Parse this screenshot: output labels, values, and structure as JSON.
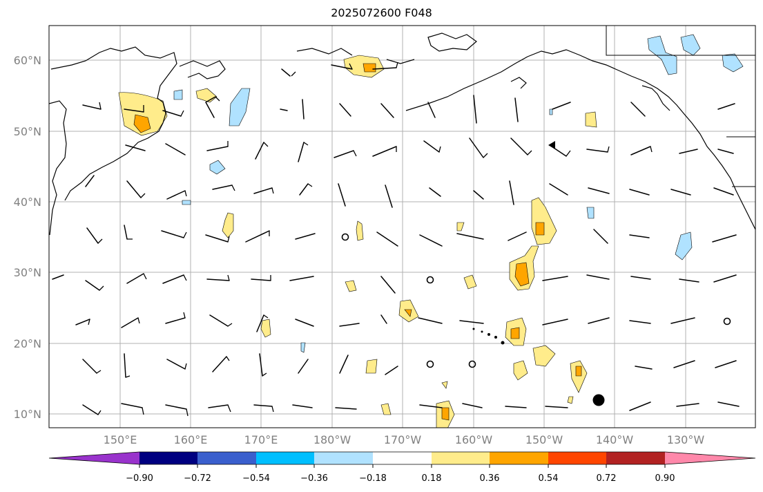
{
  "title": "2025072600 F048",
  "lat_labels": [
    "10°N",
    "20°N",
    "30°N",
    "40°N",
    "50°N",
    "60°N"
  ],
  "lon_labels": [
    "150°E",
    "160°E",
    "170°E",
    "180°W",
    "170°W",
    "160°W",
    "150°W",
    "140°W",
    "130°W"
  ],
  "colorbar": {
    "colors": [
      "#9933cc",
      "#000080",
      "#3a5fcd",
      "#00bfff",
      "#b0e2ff",
      "#ffffff",
      "#ffec8b",
      "#ffa500",
      "#ff4500",
      "#b22222",
      "#ff88aa"
    ],
    "tick_labels": [
      "−0.90",
      "−0.72",
      "−0.54",
      "−0.36",
      "−0.18",
      "0.18",
      "0.36",
      "0.54",
      "0.72",
      "0.90"
    ]
  },
  "calm_markers": 7,
  "filled_marker_label": ""
}
